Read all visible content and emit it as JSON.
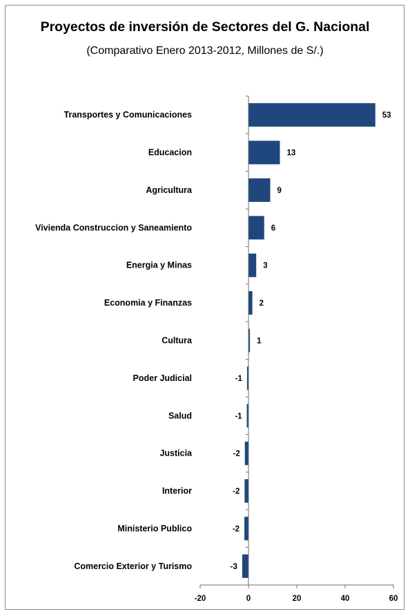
{
  "chart_data": {
    "type": "bar",
    "orientation": "horizontal",
    "title": "Proyectos de inversión  de  Sectores del G. Nacional",
    "subtitle": "(Comparativo Enero 2013-2012, Millones de S/.)",
    "categories": [
      "Transportes y Comunicaciones",
      "Educacion",
      "Agricultura",
      "Vivienda Construccion y Saneamiento",
      "Energia y Minas",
      "Economia y Finanzas",
      "Cultura",
      "Poder Judicial",
      "Salud",
      "Justicia",
      "Interior",
      "Ministerio Publico",
      "Comercio Exterior y Turismo"
    ],
    "values": [
      52.5,
      13,
      9,
      6.5,
      3.2,
      1.6,
      0.6,
      -0.6,
      -0.7,
      -1.5,
      -1.6,
      -1.7,
      -2.6
    ],
    "data_labels": [
      "53",
      "13",
      "9",
      "6",
      "3",
      "2",
      "1",
      "-1",
      "-1",
      "-2",
      "-2",
      "-2",
      "-3"
    ],
    "xlim": [
      -20,
      60
    ],
    "xticks": [
      -20,
      0,
      20,
      40,
      60
    ],
    "xlabel": "",
    "ylabel": "",
    "bar_color": "#1f477d",
    "grid": false,
    "legend": "none"
  }
}
